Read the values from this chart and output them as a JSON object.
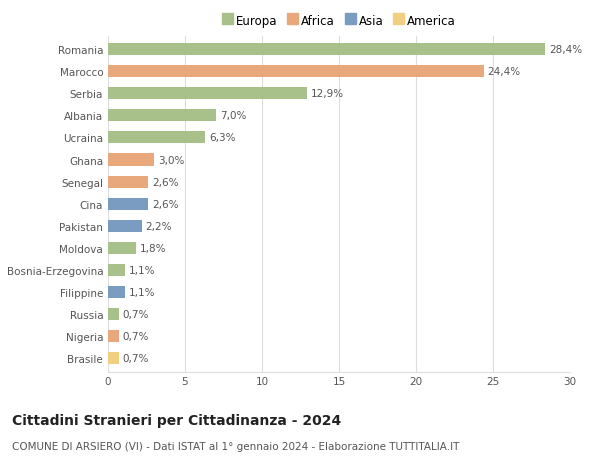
{
  "countries": [
    "Romania",
    "Marocco",
    "Serbia",
    "Albania",
    "Ucraina",
    "Ghana",
    "Senegal",
    "Cina",
    "Pakistan",
    "Moldova",
    "Bosnia-Erzegovina",
    "Filippine",
    "Russia",
    "Nigeria",
    "Brasile"
  ],
  "values": [
    28.4,
    24.4,
    12.9,
    7.0,
    6.3,
    3.0,
    2.6,
    2.6,
    2.2,
    1.8,
    1.1,
    1.1,
    0.7,
    0.7,
    0.7
  ],
  "labels": [
    "28,4%",
    "24,4%",
    "12,9%",
    "7,0%",
    "6,3%",
    "3,0%",
    "2,6%",
    "2,6%",
    "2,2%",
    "1,8%",
    "1,1%",
    "1,1%",
    "0,7%",
    "0,7%",
    "0,7%"
  ],
  "continents": [
    "Europa",
    "Africa",
    "Europa",
    "Europa",
    "Europa",
    "Africa",
    "Africa",
    "Asia",
    "Asia",
    "Europa",
    "Europa",
    "Asia",
    "Europa",
    "Africa",
    "America"
  ],
  "continent_colors": {
    "Europa": "#a8c08a",
    "Africa": "#e8a87c",
    "Asia": "#7a9cc0",
    "America": "#f0d080"
  },
  "legend_labels": [
    "Europa",
    "Africa",
    "Asia",
    "America"
  ],
  "legend_colors": [
    "#a8c08a",
    "#e8a87c",
    "#7a9cc0",
    "#f0d080"
  ],
  "title": "Cittadini Stranieri per Cittadinanza - 2024",
  "subtitle": "COMUNE DI ARSIERO (VI) - Dati ISTAT al 1° gennaio 2024 - Elaborazione TUTTITALIA.IT",
  "xlim": [
    0,
    30
  ],
  "xticks": [
    0,
    5,
    10,
    15,
    20,
    25,
    30
  ],
  "background_color": "#ffffff",
  "grid_color": "#dddddd",
  "bar_height": 0.55,
  "title_fontsize": 10,
  "subtitle_fontsize": 7.5,
  "label_fontsize": 7.5,
  "tick_fontsize": 7.5,
  "legend_fontsize": 8.5
}
